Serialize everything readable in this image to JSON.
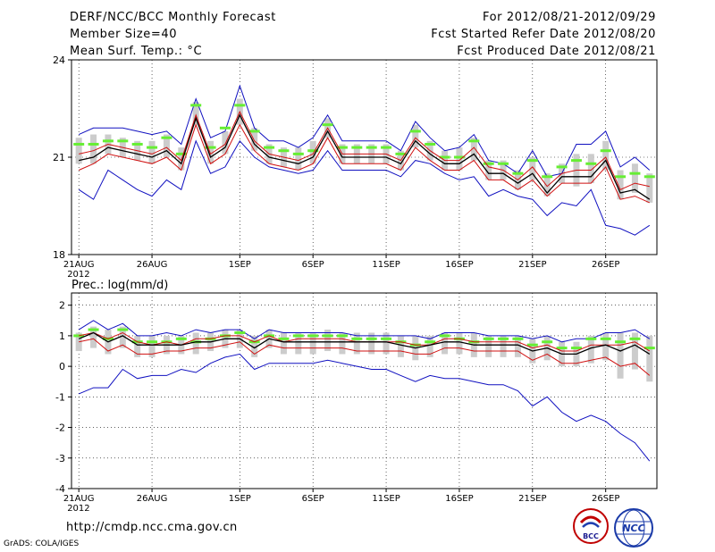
{
  "header": {
    "title": "DERF/NCC/BCC Monthly Forecast",
    "member_size": "Member Size=40",
    "variable": "Mean Surf. Temp.: °C",
    "period": "For 2012/08/21-2012/09/29",
    "started": "Fcst Started Refer Date 2012/08/20",
    "produced": "Fcst Produced Date 2012/08/21"
  },
  "footer": {
    "url": "http://cmdp.ncc.cma.gov.cn",
    "grads": "GrADS: COLA/IGES",
    "logo_bcc": "BCC",
    "logo_ncc": "NCC"
  },
  "colors": {
    "max_min": "#1010c0",
    "median": "#000000",
    "lower": "#d01010",
    "mean_bar": "#66ee33",
    "spread": "#cccccc",
    "grid": "#000000"
  },
  "chart_data": [
    {
      "type": "line",
      "title": "Mean Surf. Temp.: °C",
      "ylabel": "°C",
      "ylim": [
        18,
        24
      ],
      "yticks": [
        18,
        21,
        24
      ],
      "xlim": [
        0.5,
        40.5
      ],
      "xticks": [
        {
          "day": 1,
          "label": "21AUG",
          "sublabel": "2012"
        },
        {
          "day": 6,
          "label": "26AUG"
        },
        {
          "day": 12,
          "label": "1SEP"
        },
        {
          "day": 17,
          "label": "6SEP"
        },
        {
          "day": 22,
          "label": "11SEP"
        },
        {
          "day": 27,
          "label": "16SEP"
        },
        {
          "day": 32,
          "label": "21SEP"
        },
        {
          "day": 37,
          "label": "26SEP"
        }
      ],
      "grid": true,
      "series": [
        {
          "name": "max",
          "color": "#1010c0",
          "values": [
            21.7,
            21.9,
            21.9,
            21.9,
            21.8,
            21.7,
            21.8,
            21.4,
            22.8,
            21.6,
            21.8,
            23.2,
            21.9,
            21.5,
            21.5,
            21.3,
            21.6,
            22.3,
            21.5,
            21.5,
            21.5,
            21.5,
            21.2,
            22.1,
            21.6,
            21.2,
            21.3,
            21.7,
            20.9,
            20.8,
            20.5,
            21.2,
            20.4,
            20.5,
            21.4,
            21.4,
            21.8,
            20.7,
            21.0,
            20.6
          ]
        },
        {
          "name": "mean",
          "color": "#66ee33",
          "values": [
            21.4,
            21.4,
            21.5,
            21.5,
            21.4,
            21.3,
            21.6,
            21.1,
            22.6,
            21.3,
            21.9,
            22.6,
            21.8,
            21.3,
            21.2,
            21.1,
            21.2,
            22.0,
            21.3,
            21.3,
            21.3,
            21.3,
            21.1,
            21.8,
            21.4,
            21.0,
            21.0,
            21.5,
            20.8,
            20.8,
            20.5,
            20.9,
            20.4,
            20.7,
            20.9,
            20.8,
            21.2,
            20.4,
            20.5,
            20.4
          ]
        },
        {
          "name": "upper",
          "color": "#d01010",
          "values": [
            21.1,
            21.2,
            21.4,
            21.3,
            21.2,
            21.1,
            21.3,
            20.9,
            22.3,
            21.1,
            21.4,
            22.4,
            21.5,
            21.1,
            21.0,
            20.9,
            21.1,
            21.9,
            21.1,
            21.1,
            21.1,
            21.1,
            20.9,
            21.6,
            21.2,
            20.9,
            20.9,
            21.3,
            20.7,
            20.6,
            20.3,
            20.7,
            20.1,
            20.5,
            20.6,
            20.6,
            21.0,
            20.0,
            20.2,
            20.1
          ]
        },
        {
          "name": "median",
          "color": "#000000",
          "values": [
            20.9,
            21.0,
            21.3,
            21.2,
            21.1,
            21.0,
            21.2,
            20.8,
            22.2,
            21.0,
            21.3,
            22.3,
            21.4,
            21.0,
            20.9,
            20.8,
            21.0,
            21.8,
            21.0,
            21.0,
            21.0,
            21.0,
            20.8,
            21.5,
            21.1,
            20.8,
            20.8,
            21.1,
            20.5,
            20.5,
            20.2,
            20.5,
            19.9,
            20.4,
            20.4,
            20.4,
            20.9,
            19.9,
            20.0,
            19.7
          ]
        },
        {
          "name": "lower",
          "color": "#d01010",
          "values": [
            20.6,
            20.8,
            21.1,
            21.0,
            20.9,
            20.8,
            21.0,
            20.6,
            22.0,
            20.8,
            21.1,
            22.0,
            21.2,
            20.8,
            20.7,
            20.6,
            20.8,
            21.6,
            20.8,
            20.8,
            20.8,
            20.8,
            20.6,
            21.3,
            20.9,
            20.6,
            20.6,
            20.9,
            20.3,
            20.3,
            20.0,
            20.3,
            19.8,
            20.2,
            20.2,
            20.2,
            20.7,
            19.7,
            19.8,
            19.6
          ]
        },
        {
          "name": "min",
          "color": "#1010c0",
          "values": [
            20.0,
            19.7,
            20.6,
            20.3,
            20.0,
            19.8,
            20.3,
            20.0,
            21.5,
            20.5,
            20.7,
            21.5,
            21.0,
            20.7,
            20.6,
            20.5,
            20.6,
            21.2,
            20.6,
            20.6,
            20.6,
            20.6,
            20.4,
            20.9,
            20.8,
            20.5,
            20.3,
            20.4,
            19.8,
            20.0,
            19.8,
            19.7,
            19.2,
            19.6,
            19.5,
            20.0,
            18.9,
            18.8,
            18.6,
            18.9
          ]
        }
      ],
      "spread": {
        "high": [
          21.6,
          21.7,
          21.7,
          21.6,
          21.5,
          21.5,
          21.7,
          21.3,
          22.7,
          21.5,
          21.8,
          22.8,
          21.9,
          21.4,
          21.3,
          21.3,
          21.5,
          22.2,
          21.4,
          21.4,
          21.4,
          21.4,
          21.2,
          22.0,
          21.5,
          21.2,
          21.3,
          21.6,
          20.9,
          20.9,
          20.6,
          21.0,
          20.5,
          20.8,
          21.1,
          21.1,
          21.5,
          20.6,
          20.8,
          20.5
        ],
        "low": [
          20.8,
          20.8,
          21.1,
          21.0,
          20.9,
          20.8,
          21.0,
          20.6,
          22.0,
          20.8,
          21.1,
          22.0,
          21.2,
          20.8,
          20.7,
          20.6,
          20.8,
          21.6,
          20.8,
          20.8,
          20.8,
          20.8,
          20.6,
          21.3,
          20.9,
          20.6,
          20.6,
          20.9,
          20.3,
          20.3,
          20.0,
          20.3,
          19.8,
          20.2,
          20.1,
          20.2,
          20.6,
          19.7,
          19.9,
          19.6
        ]
      }
    },
    {
      "type": "line",
      "title": "Prec.: log(mm/d)",
      "ylabel": "log(mm/d)",
      "ylim": [
        -4,
        2.4
      ],
      "yticks": [
        -4,
        -3,
        -2,
        -1,
        0,
        1,
        2
      ],
      "xlim": [
        0.5,
        40.5
      ],
      "xticks": [
        {
          "day": 1,
          "label": "21AUG",
          "sublabel": "2012"
        },
        {
          "day": 6,
          "label": "26AUG"
        },
        {
          "day": 12,
          "label": "1SEP"
        },
        {
          "day": 17,
          "label": "6SEP"
        },
        {
          "day": 22,
          "label": "11SEP"
        },
        {
          "day": 27,
          "label": "16SEP"
        },
        {
          "day": 32,
          "label": "21SEP"
        },
        {
          "day": 37,
          "label": "26SEP"
        }
      ],
      "grid": true,
      "series": [
        {
          "name": "max",
          "color": "#1010c0",
          "values": [
            1.2,
            1.5,
            1.2,
            1.4,
            1.0,
            1.0,
            1.1,
            1.0,
            1.2,
            1.1,
            1.2,
            1.2,
            0.9,
            1.2,
            1.1,
            1.1,
            1.1,
            1.1,
            1.1,
            1.0,
            1.0,
            1.0,
            1.0,
            1.0,
            0.9,
            1.1,
            1.1,
            1.1,
            1.0,
            1.0,
            1.0,
            0.9,
            1.0,
            0.8,
            0.9,
            0.9,
            1.1,
            1.1,
            1.2,
            0.9
          ]
        },
        {
          "name": "mean",
          "color": "#66ee33",
          "values": [
            1.0,
            1.2,
            0.9,
            1.2,
            0.8,
            0.8,
            0.8,
            0.9,
            0.8,
            0.9,
            1.0,
            1.1,
            0.8,
            1.0,
            0.9,
            1.0,
            1.0,
            1.0,
            1.0,
            0.9,
            0.9,
            0.9,
            0.8,
            0.7,
            0.8,
            1.0,
            0.9,
            0.8,
            0.9,
            0.9,
            0.9,
            0.7,
            0.8,
            0.6,
            0.6,
            0.9,
            0.9,
            0.8,
            0.9,
            0.6
          ]
        },
        {
          "name": "upper",
          "color": "#d01010",
          "values": [
            1.0,
            1.1,
            0.9,
            1.1,
            0.8,
            0.7,
            0.8,
            0.7,
            0.9,
            0.9,
            1.0,
            1.0,
            0.8,
            1.0,
            0.8,
            0.9,
            0.9,
            0.9,
            0.9,
            0.8,
            0.8,
            0.8,
            0.8,
            0.7,
            0.7,
            0.9,
            0.9,
            0.8,
            0.8,
            0.8,
            0.8,
            0.6,
            0.7,
            0.5,
            0.5,
            0.7,
            0.7,
            0.7,
            0.8,
            0.5
          ]
        },
        {
          "name": "median",
          "color": "#000000",
          "values": [
            0.9,
            1.1,
            0.8,
            1.0,
            0.7,
            0.7,
            0.7,
            0.7,
            0.8,
            0.8,
            0.9,
            0.9,
            0.6,
            0.9,
            0.8,
            0.8,
            0.8,
            0.8,
            0.8,
            0.8,
            0.8,
            0.8,
            0.7,
            0.6,
            0.7,
            0.8,
            0.8,
            0.7,
            0.7,
            0.7,
            0.7,
            0.5,
            0.6,
            0.4,
            0.4,
            0.6,
            0.7,
            0.5,
            0.7,
            0.4
          ]
        },
        {
          "name": "lower",
          "color": "#d01010",
          "values": [
            0.8,
            0.9,
            0.5,
            0.7,
            0.4,
            0.4,
            0.5,
            0.5,
            0.6,
            0.6,
            0.7,
            0.8,
            0.4,
            0.7,
            0.6,
            0.6,
            0.6,
            0.6,
            0.6,
            0.5,
            0.5,
            0.5,
            0.5,
            0.4,
            0.4,
            0.6,
            0.6,
            0.5,
            0.5,
            0.5,
            0.5,
            0.2,
            0.4,
            0.1,
            0.1,
            0.2,
            0.3,
            0.0,
            0.1,
            -0.3
          ]
        },
        {
          "name": "min",
          "color": "#1010c0",
          "values": [
            -0.9,
            -0.7,
            -0.7,
            -0.1,
            -0.4,
            -0.3,
            -0.3,
            -0.1,
            -0.2,
            0.1,
            0.3,
            0.4,
            -0.1,
            0.1,
            0.1,
            0.1,
            0.1,
            0.2,
            0.1,
            0.0,
            -0.1,
            -0.1,
            -0.3,
            -0.5,
            -0.3,
            -0.4,
            -0.4,
            -0.5,
            -0.6,
            -0.6,
            -0.8,
            -1.3,
            -1.0,
            -1.5,
            -1.8,
            -1.6,
            -1.8,
            -2.2,
            -2.5,
            -3.1
          ]
        }
      ],
      "spread": {
        "high": [
          1.1,
          1.3,
          1.2,
          1.3,
          1.0,
          1.0,
          1.0,
          1.0,
          1.1,
          1.1,
          1.2,
          1.2,
          1.0,
          1.2,
          1.1,
          1.1,
          1.1,
          1.2,
          1.1,
          1.1,
          1.1,
          1.1,
          1.0,
          1.0,
          1.0,
          1.1,
          1.1,
          1.1,
          1.0,
          1.0,
          1.0,
          0.9,
          1.0,
          0.8,
          0.8,
          1.0,
          1.1,
          1.1,
          1.1,
          1.0
        ],
        "low": [
          0.5,
          0.6,
          0.4,
          0.6,
          0.3,
          0.3,
          0.4,
          0.4,
          0.4,
          0.5,
          0.6,
          0.6,
          0.3,
          0.6,
          0.4,
          0.4,
          0.4,
          0.5,
          0.4,
          0.4,
          0.4,
          0.4,
          0.3,
          0.2,
          0.3,
          0.4,
          0.4,
          0.3,
          0.3,
          0.3,
          0.3,
          0.1,
          0.2,
          0.0,
          0.0,
          0.1,
          0.2,
          -0.4,
          -0.1,
          -0.5
        ]
      }
    }
  ]
}
